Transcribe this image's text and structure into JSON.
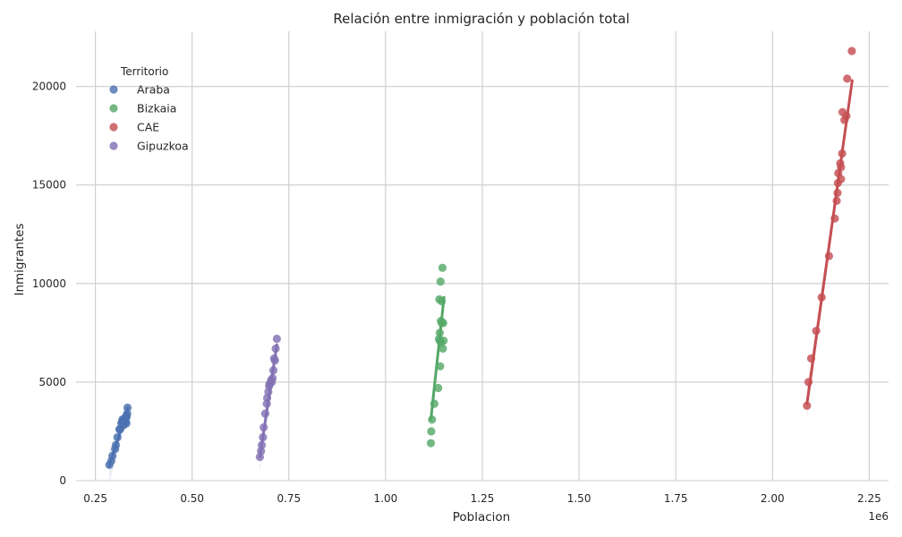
{
  "chart_data": {
    "type": "scatter",
    "title": "Relación entre inmigración y población total",
    "xlabel": "Poblacion",
    "ylabel": "Inmigrantes",
    "x_offset_label": "1e6",
    "x_ticks": [
      "0.25",
      "0.50",
      "0.75",
      "1.00",
      "1.25",
      "1.50",
      "1.75",
      "2.00",
      "2.25"
    ],
    "y_ticks": [
      "0",
      "5000",
      "10000",
      "15000",
      "20000"
    ],
    "xlim": [
      200000,
      2300000
    ],
    "ylim": [
      0,
      22800
    ],
    "grid": true,
    "legend": {
      "title": "Territorio",
      "position": "top-left"
    },
    "series": [
      {
        "name": "Araba",
        "color": "#4c72b0",
        "points": [
          [
            286000,
            800
          ],
          [
            291000,
            1000
          ],
          [
            294000,
            1250
          ],
          [
            301000,
            1600
          ],
          [
            303000,
            1800
          ],
          [
            307000,
            2200
          ],
          [
            312000,
            2600
          ],
          [
            314000,
            2600
          ],
          [
            317000,
            2900
          ],
          [
            319000,
            3000
          ],
          [
            320000,
            3100
          ],
          [
            322000,
            2800
          ],
          [
            323000,
            3100
          ],
          [
            325000,
            2900
          ],
          [
            326000,
            3100
          ],
          [
            327000,
            3200
          ],
          [
            328000,
            3000
          ],
          [
            330000,
            3200
          ],
          [
            330000,
            2900
          ],
          [
            331000,
            3300
          ],
          [
            332000,
            3400
          ],
          [
            333000,
            3700
          ]
        ],
        "trend": [
          [
            286000,
            730
          ],
          [
            334000,
            3700
          ]
        ]
      },
      {
        "name": "Bizkaia",
        "color": "#55a868",
        "points": [
          [
            1117000,
            1900
          ],
          [
            1118000,
            2500
          ],
          [
            1120000,
            3100
          ],
          [
            1126000,
            3900
          ],
          [
            1136000,
            4700
          ],
          [
            1138000,
            7200
          ],
          [
            1139000,
            9200
          ],
          [
            1140000,
            7100
          ],
          [
            1140000,
            7500
          ],
          [
            1141000,
            5800
          ],
          [
            1142000,
            10100
          ],
          [
            1143000,
            7000
          ],
          [
            1143000,
            8100
          ],
          [
            1145000,
            8000
          ],
          [
            1145000,
            9100
          ],
          [
            1147000,
            10800
          ],
          [
            1148000,
            6700
          ],
          [
            1149000,
            8000
          ],
          [
            1150000,
            7100
          ]
        ],
        "trend": [
          [
            1117000,
            3100
          ],
          [
            1151000,
            9300
          ]
        ]
      },
      {
        "name": "CAE",
        "color": "#c44e52",
        "points": [
          [
            2089000,
            3800
          ],
          [
            2093000,
            5000
          ],
          [
            2100000,
            6200
          ],
          [
            2113000,
            7600
          ],
          [
            2127000,
            9300
          ],
          [
            2146000,
            11400
          ],
          [
            2161000,
            13300
          ],
          [
            2166000,
            14200
          ],
          [
            2168000,
            14600
          ],
          [
            2169000,
            15100
          ],
          [
            2170000,
            15600
          ],
          [
            2175000,
            16100
          ],
          [
            2177000,
            15900
          ],
          [
            2177000,
            15300
          ],
          [
            2180000,
            16600
          ],
          [
            2181000,
            18700
          ],
          [
            2186000,
            18300
          ],
          [
            2191000,
            18500
          ],
          [
            2193000,
            20400
          ],
          [
            2205000,
            21800
          ]
        ],
        "trend": [
          [
            2089000,
            3900
          ],
          [
            2206000,
            20300
          ]
        ]
      },
      {
        "name": "Gipuzkoa",
        "color": "#8172b3",
        "points": [
          [
            675000,
            1200
          ],
          [
            678000,
            1500
          ],
          [
            680000,
            1800
          ],
          [
            683000,
            2200
          ],
          [
            685000,
            2700
          ],
          [
            689000,
            3400
          ],
          [
            693000,
            3900
          ],
          [
            694000,
            4200
          ],
          [
            697000,
            4500
          ],
          [
            699000,
            4800
          ],
          [
            700000,
            4900
          ],
          [
            704000,
            5100
          ],
          [
            706000,
            5000
          ],
          [
            708000,
            5200
          ],
          [
            710000,
            5600
          ],
          [
            712000,
            6200
          ],
          [
            714000,
            6100
          ],
          [
            716000,
            6700
          ],
          [
            719000,
            7200
          ]
        ],
        "trend": [
          [
            675000,
            1200
          ],
          [
            719000,
            6900
          ]
        ]
      }
    ]
  }
}
